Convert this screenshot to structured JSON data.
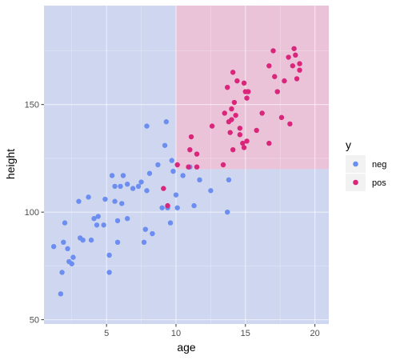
{
  "chart_data": {
    "type": "scatter",
    "xlabel": "age",
    "ylabel": "height",
    "xlim": [
      0.5,
      21.0
    ],
    "ylim": [
      48,
      196
    ],
    "x_ticks": [
      5,
      10,
      15,
      20
    ],
    "y_ticks": [
      50,
      100,
      150
    ],
    "grid": true,
    "legend": {
      "title": "y",
      "position": "right",
      "entries": [
        {
          "label": "neg",
          "color": "#6b8ef0"
        },
        {
          "label": "pos",
          "color": "#d9257a"
        }
      ]
    },
    "regions": [
      {
        "name": "neg",
        "color": "#cfd7f0"
      },
      {
        "name": "pos",
        "color": "#ebc3d8",
        "x_range": [
          10,
          21
        ],
        "y_range": [
          120,
          196
        ]
      }
    ],
    "series": [
      {
        "name": "neg",
        "color": "#6b8ef0",
        "points": [
          [
            1.2,
            84
          ],
          [
            1.7,
            62
          ],
          [
            1.8,
            72
          ],
          [
            1.9,
            86
          ],
          [
            2.0,
            95
          ],
          [
            2.2,
            83
          ],
          [
            2.3,
            77
          ],
          [
            2.5,
            76
          ],
          [
            2.6,
            79
          ],
          [
            3.0,
            105
          ],
          [
            3.1,
            88
          ],
          [
            3.3,
            87
          ],
          [
            3.7,
            107
          ],
          [
            3.9,
            87
          ],
          [
            4.1,
            97
          ],
          [
            4.3,
            94
          ],
          [
            4.4,
            98
          ],
          [
            4.8,
            94
          ],
          [
            4.9,
            106
          ],
          [
            5.2,
            80
          ],
          [
            5.2,
            72
          ],
          [
            5.4,
            117
          ],
          [
            5.6,
            105
          ],
          [
            5.6,
            112
          ],
          [
            5.8,
            86
          ],
          [
            5.8,
            96
          ],
          [
            6.0,
            112
          ],
          [
            6.1,
            104
          ],
          [
            6.2,
            117
          ],
          [
            6.5,
            97
          ],
          [
            6.5,
            113
          ],
          [
            6.9,
            111
          ],
          [
            7.3,
            112
          ],
          [
            7.5,
            114
          ],
          [
            7.7,
            86
          ],
          [
            7.8,
            92
          ],
          [
            7.9,
            110
          ],
          [
            7.9,
            140
          ],
          [
            8.1,
            118
          ],
          [
            8.3,
            90
          ],
          [
            8.7,
            122
          ],
          [
            9.0,
            102
          ],
          [
            9.2,
            131
          ],
          [
            9.3,
            142
          ],
          [
            9.4,
            102
          ],
          [
            9.6,
            95
          ],
          [
            9.7,
            124
          ],
          [
            9.8,
            119
          ],
          [
            10.0,
            108
          ],
          [
            10.1,
            102
          ],
          [
            10.5,
            117
          ],
          [
            11.0,
            121
          ],
          [
            11.3,
            103
          ],
          [
            11.7,
            115
          ],
          [
            12.5,
            110
          ],
          [
            13.7,
            100
          ],
          [
            13.8,
            115
          ]
        ]
      },
      {
        "name": "pos",
        "color": "#d9257a",
        "points": [
          [
            9.1,
            111
          ],
          [
            9.4,
            103
          ],
          [
            10.1,
            122
          ],
          [
            10.9,
            121
          ],
          [
            11.0,
            129
          ],
          [
            11.1,
            135
          ],
          [
            11.5,
            127
          ],
          [
            11.5,
            121
          ],
          [
            12.6,
            140
          ],
          [
            13.4,
            122
          ],
          [
            13.5,
            146
          ],
          [
            13.7,
            158
          ],
          [
            13.8,
            142
          ],
          [
            13.9,
            137
          ],
          [
            14.0,
            148
          ],
          [
            14.0,
            143
          ],
          [
            14.1,
            129
          ],
          [
            14.1,
            165
          ],
          [
            14.2,
            151
          ],
          [
            14.3,
            145
          ],
          [
            14.4,
            161
          ],
          [
            14.6,
            139
          ],
          [
            14.6,
            136
          ],
          [
            14.8,
            132
          ],
          [
            14.9,
            130
          ],
          [
            14.9,
            160
          ],
          [
            15.0,
            156
          ],
          [
            15.1,
            153
          ],
          [
            15.1,
            133
          ],
          [
            15.2,
            156
          ],
          [
            15.8,
            138
          ],
          [
            16.2,
            146
          ],
          [
            16.7,
            132
          ],
          [
            16.7,
            168
          ],
          [
            17.0,
            175
          ],
          [
            17.1,
            163
          ],
          [
            17.3,
            156
          ],
          [
            17.6,
            144
          ],
          [
            17.8,
            161
          ],
          [
            18.1,
            172
          ],
          [
            18.2,
            141
          ],
          [
            18.4,
            168
          ],
          [
            18.5,
            176
          ],
          [
            18.6,
            173
          ],
          [
            18.7,
            162
          ],
          [
            18.9,
            166
          ],
          [
            18.9,
            169
          ]
        ]
      }
    ]
  }
}
